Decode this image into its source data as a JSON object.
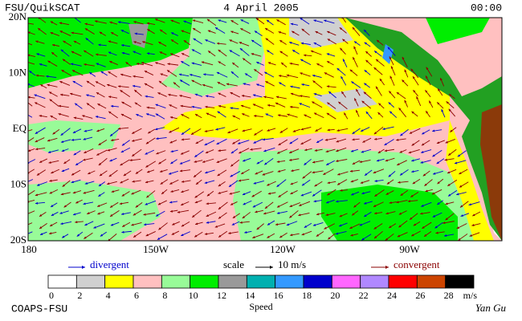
{
  "header": {
    "title": "FSU/QuikSCAT",
    "date": "4 April 2005",
    "time": "00:00"
  },
  "map": {
    "lat_labels": [
      "20N",
      "10N",
      "EQ",
      "10S",
      "20S"
    ],
    "lon_labels": [
      "180",
      "150W",
      "120W",
      "90W"
    ]
  },
  "legend": {
    "divergent": "divergent",
    "scale": "scale",
    "scale_value": "10 m/s",
    "convergent": "convergent"
  },
  "colorbar": {
    "ticks": [
      0,
      2,
      4,
      6,
      8,
      10,
      12,
      14,
      16,
      18,
      20,
      22,
      24,
      26,
      28
    ],
    "unit": "m/s",
    "label": "Speed",
    "colors": [
      "#ffffff",
      "#d0d0d0",
      "#ffff00",
      "#ffc0c0",
      "#98fb98",
      "#00ee00",
      "#999999",
      "#00b0b0",
      "#3399ff",
      "#0000cc",
      "#ff66ff",
      "#b088ff",
      "#ff0000",
      "#cc4400",
      "#000000"
    ]
  },
  "footer": {
    "source": "COAPS-FSU",
    "author": "Yan Gu"
  }
}
